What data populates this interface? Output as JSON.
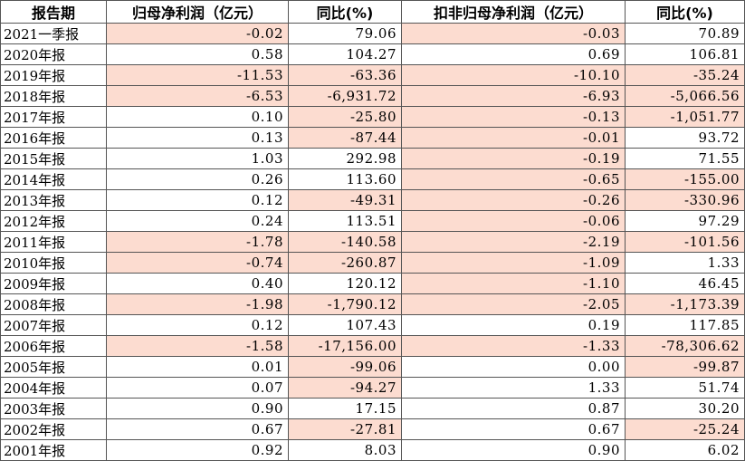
{
  "table": {
    "headers": [
      "报告期",
      "归母净利润（亿元）",
      "同比(%)",
      "扣非归母净利润（亿元）",
      "同比(%)"
    ],
    "rows": [
      [
        "2021一季报",
        "-0.02",
        "79.06",
        "-0.03",
        "70.89"
      ],
      [
        "2020年报",
        "0.58",
        "104.27",
        "0.69",
        "106.81"
      ],
      [
        "2019年报",
        "-11.53",
        "-63.36",
        "-10.10",
        "-35.24"
      ],
      [
        "2018年报",
        "-6.53",
        "-6,931.72",
        "-6.93",
        "-5,066.56"
      ],
      [
        "2017年报",
        "0.10",
        "-25.80",
        "-0.13",
        "-1,051.77"
      ],
      [
        "2016年报",
        "0.13",
        "-87.44",
        "-0.01",
        "93.72"
      ],
      [
        "2015年报",
        "1.03",
        "292.98",
        "-0.19",
        "71.55"
      ],
      [
        "2014年报",
        "0.26",
        "113.60",
        "-0.65",
        "-155.00"
      ],
      [
        "2013年报",
        "0.12",
        "-49.31",
        "-0.26",
        "-330.96"
      ],
      [
        "2012年报",
        "0.24",
        "113.51",
        "-0.06",
        "97.29"
      ],
      [
        "2011年报",
        "-1.78",
        "-140.58",
        "-2.19",
        "-101.56"
      ],
      [
        "2010年报",
        "-0.74",
        "-260.87",
        "-1.09",
        "1.33"
      ],
      [
        "2009年报",
        "0.40",
        "120.12",
        "-1.10",
        "46.45"
      ],
      [
        "2008年报",
        "-1.98",
        "-1,790.12",
        "-2.05",
        "-1,173.39"
      ],
      [
        "2007年报",
        "0.12",
        "107.43",
        "0.19",
        "117.85"
      ],
      [
        "2006年报",
        "-1.58",
        "-17,156.00",
        "-1.33",
        "-78,306.62"
      ],
      [
        "2005年报",
        "0.01",
        "-99.06",
        "0.00",
        "-99.87"
      ],
      [
        "2004年报",
        "0.07",
        "-94.27",
        "1.33",
        "51.74"
      ],
      [
        "2003年报",
        "0.90",
        "17.15",
        "0.87",
        "30.20"
      ],
      [
        "2002年报",
        "0.67",
        "-27.81",
        "0.67",
        "-25.24"
      ],
      [
        "2001年报",
        "0.92",
        "8.03",
        "0.90",
        "6.02"
      ]
    ]
  },
  "colors": {
    "negative_highlight": "#fcdcd0",
    "border": "#555555",
    "background": "#ffffff"
  }
}
